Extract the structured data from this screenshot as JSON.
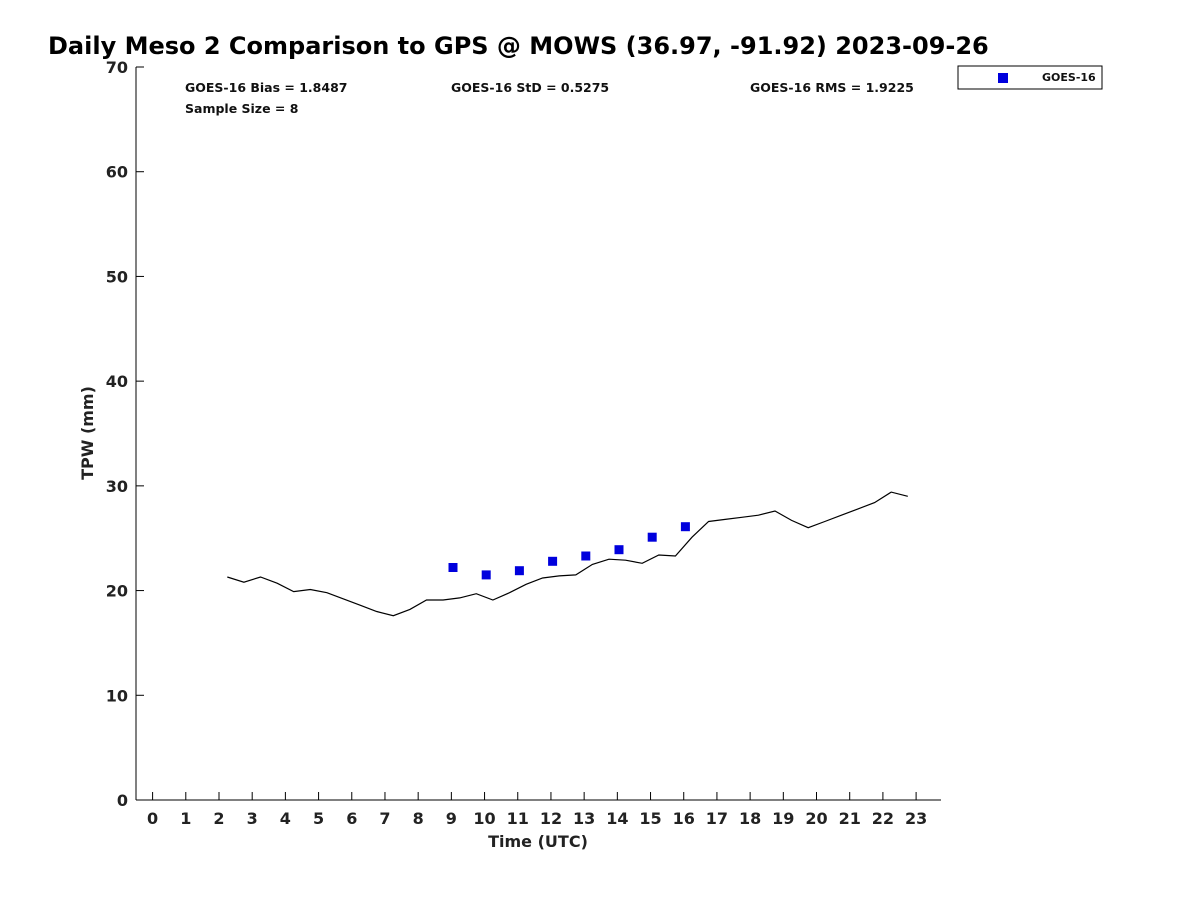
{
  "chart_data": {
    "type": "scatter",
    "title": "Daily Meso 2 Comparison to GPS @ MOWS (36.97, -91.92) 2023-09-26",
    "xlabel": "Time (UTC)",
    "ylabel": "TPW (mm)",
    "xlim": [
      -0.5,
      23.75
    ],
    "ylim": [
      0,
      70
    ],
    "x_ticks": [
      0,
      1,
      2,
      3,
      4,
      5,
      6,
      7,
      8,
      9,
      10,
      11,
      12,
      13,
      14,
      15,
      16,
      17,
      18,
      19,
      20,
      21,
      22,
      23
    ],
    "y_ticks": [
      0,
      10,
      20,
      30,
      40,
      50,
      60,
      70
    ],
    "grid": false,
    "legend_position": "top-right-outside",
    "stats": {
      "bias": "GOES-16 Bias = 1.8487",
      "std": "GOES-16 StD = 0.5275",
      "rms": "GOES-16 RMS = 1.9225",
      "sample_size": "Sample Size = 8"
    },
    "series": [
      {
        "name": "GOES-16",
        "kind": "scatter",
        "marker": "square",
        "color": "#0000dd",
        "x": [
          9.05,
          10.05,
          11.05,
          12.05,
          13.05,
          14.05,
          15.05,
          16.05
        ],
        "y": [
          22.2,
          21.5,
          21.9,
          22.8,
          23.3,
          23.9,
          25.1,
          26.1
        ]
      },
      {
        "kind": "line",
        "color": "#000000",
        "x": [
          2.25,
          2.75,
          3.25,
          3.75,
          4.25,
          4.75,
          5.25,
          5.75,
          6.25,
          6.75,
          7.25,
          7.75,
          8.25,
          8.75,
          9.25,
          9.75,
          10.25,
          10.75,
          11.25,
          11.75,
          12.25,
          12.75,
          13.25,
          13.75,
          14.25,
          14.75,
          15.25,
          15.75,
          16.25,
          16.75,
          17.25,
          17.75,
          18.25,
          18.75,
          19.25,
          19.75,
          20.25,
          20.75,
          21.25,
          21.75,
          22.25,
          22.75
        ],
        "y": [
          21.3,
          20.8,
          21.3,
          20.7,
          19.9,
          20.1,
          19.8,
          19.2,
          18.6,
          18.0,
          17.6,
          18.2,
          19.1,
          19.1,
          19.3,
          19.7,
          19.1,
          19.8,
          20.6,
          21.2,
          21.4,
          21.5,
          22.5,
          23.0,
          22.9,
          22.6,
          23.4,
          23.3,
          25.1,
          26.6,
          26.8,
          27.0,
          27.2,
          27.6,
          26.7,
          26.0,
          26.6,
          27.2,
          27.8,
          28.4,
          29.4,
          29.0
        ]
      }
    ]
  }
}
